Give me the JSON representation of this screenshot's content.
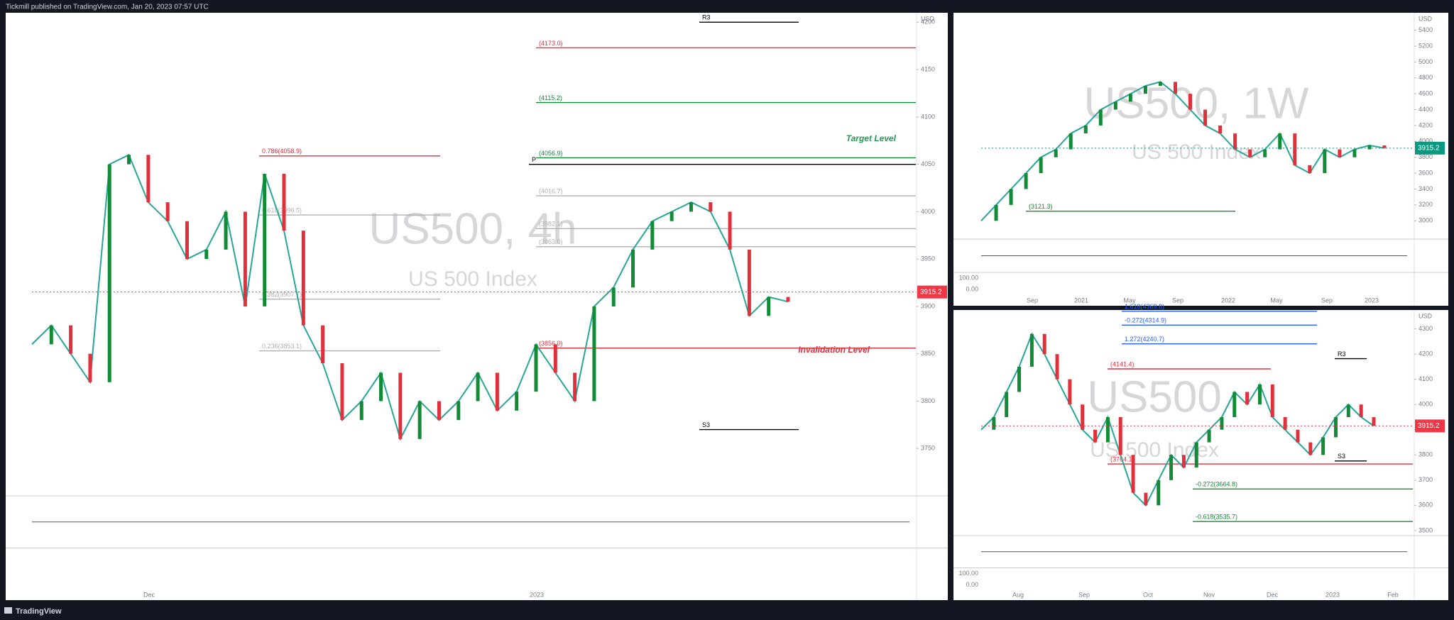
{
  "header": {
    "text": "Tickmill published on TradingView.com, Jan 20, 2023 07:57 UTC"
  },
  "footer": {
    "brand": "TradingView"
  },
  "panels": [
    {
      "title": "US500, 4h",
      "subtitle": "US 500 Index",
      "currency": "USD",
      "ylim": [
        3700,
        4210
      ],
      "yticks": [
        3750,
        3800,
        3850,
        3900,
        3950,
        4000,
        4050,
        4100,
        4150,
        4200
      ],
      "closes": [
        3860,
        3880,
        3850,
        3820,
        4050,
        4060,
        4010,
        3990,
        3950,
        3960,
        4000,
        3900,
        4040,
        3980,
        3880,
        3840,
        3780,
        3800,
        3830,
        3760,
        3800,
        3780,
        3800,
        3830,
        3790,
        3810,
        3860,
        3830,
        3800,
        3900,
        3920,
        3960,
        3990,
        4000,
        4010,
        4000,
        3960,
        3890,
        3910,
        3905
      ],
      "current_price": 3915.2,
      "price_color": "#f23645",
      "levels": [
        {
          "label": "R3",
          "value": 4200,
          "color": "#000000"
        },
        {
          "label": "(4173.0)",
          "value": 4173.0,
          "color": "#e0303c"
        },
        {
          "label": "(4115.2)",
          "value": 4115.2,
          "color": "#138a36"
        },
        {
          "label": "(4056.9)",
          "value": 4056.9,
          "color": "#138a36"
        },
        {
          "label": "P",
          "value": 4050,
          "color": "#000000"
        },
        {
          "label": "(4016.7)",
          "value": 4016.7,
          "color": "#b0b0b0"
        },
        {
          "label": "(3982.1)",
          "value": 3982.1,
          "color": "#b0b0b0"
        },
        {
          "label": "(3963.0)",
          "value": 3963.0,
          "color": "#b0b0b0"
        },
        {
          "label": "(3856.0)",
          "value": 3856.0,
          "color": "#e0303c"
        },
        {
          "label": "S3",
          "value": 3770,
          "color": "#000000"
        },
        {
          "label": "0.786(4058.9)",
          "value": 4058.9,
          "color": "#e0303c"
        },
        {
          "label": "0.618(3996.5)",
          "value": 3996.5,
          "color": "#b0b0b0"
        },
        {
          "label": "0.382(3907.7)",
          "value": 3907.7,
          "color": "#b0b0b0"
        },
        {
          "label": "0.236(3853.1)",
          "value": 3853.1,
          "color": "#b0b0b0"
        }
      ],
      "annotations": [
        "Target Level",
        "Invalidation Level"
      ],
      "x_labels": [
        "Dec",
        "2023"
      ],
      "indicator_labels": []
    },
    {
      "title": "US500, 1W",
      "subtitle": "US 500 Index",
      "currency": "USD",
      "ylim": [
        2770,
        5620
      ],
      "yticks": [
        3000,
        3200,
        3400,
        3600,
        3800,
        4000,
        4200,
        4400,
        4600,
        4800,
        5000,
        5200,
        5400
      ],
      "closes": [
        3000,
        3200,
        3400,
        3600,
        3800,
        3900,
        4100,
        4200,
        4400,
        4500,
        4600,
        4700,
        4750,
        4600,
        4400,
        4200,
        4100,
        3900,
        3800,
        3900,
        4100,
        3700,
        3600,
        3900,
        3800,
        3900,
        3950,
        3915
      ],
      "current_price": 3915.2,
      "price_color": "#089981",
      "levels": [
        {
          "label": "(3121.3)",
          "value": 3121.3,
          "color": "#138a36"
        }
      ],
      "annotations": [],
      "x_labels": [
        "Sep",
        "2021",
        "May",
        "Sep",
        "2022",
        "May",
        "Sep",
        "2023"
      ],
      "indicator_labels": [
        "100.00",
        "0.00"
      ]
    },
    {
      "title": "US500",
      "subtitle": "US 500 Index",
      "currency": "USD",
      "ylim": [
        3480,
        4375
      ],
      "yticks": [
        3500,
        3600,
        3700,
        3800,
        3900,
        4000,
        4100,
        4200,
        4300
      ],
      "closes": [
        3900,
        3950,
        4050,
        4150,
        4280,
        4200,
        4100,
        4000,
        3900,
        3850,
        3950,
        3800,
        3650,
        3600,
        3700,
        3800,
        3750,
        3850,
        3900,
        3950,
        4050,
        4000,
        4080,
        3950,
        3900,
        3850,
        3800,
        3870,
        3950,
        4000,
        3950,
        3915
      ],
      "current_price": 3915.2,
      "price_color": "#f23645",
      "levels": [
        {
          "label": "1.618(4369.8)",
          "value": 4369.8,
          "color": "#2962ff"
        },
        {
          "label": "-0.272(4314.9)",
          "value": 4314.9,
          "color": "#2962ff"
        },
        {
          "label": "1.272(4240.7)",
          "value": 4240.7,
          "color": "#2962ff"
        },
        {
          "label": "R3",
          "value": 4182,
          "color": "#000000"
        },
        {
          "label": "(4141.4)",
          "value": 4141.4,
          "color": "#e0303c"
        },
        {
          "label": "S3",
          "value": 3776,
          "color": "#000000"
        },
        {
          "label": "(3764.1)",
          "value": 3764.1,
          "color": "#e0303c"
        },
        {
          "label": "-0.272(3664.8)",
          "value": 3664.8,
          "color": "#138a36"
        },
        {
          "label": "-0.618(3535.7)",
          "value": 3535.7,
          "color": "#138a36"
        }
      ],
      "annotations": [],
      "x_labels": [
        "Aug",
        "Sep",
        "Oct",
        "Nov",
        "Dec",
        "2023",
        "Feb"
      ],
      "indicator_labels": [
        "100.00",
        "0.00"
      ]
    }
  ]
}
